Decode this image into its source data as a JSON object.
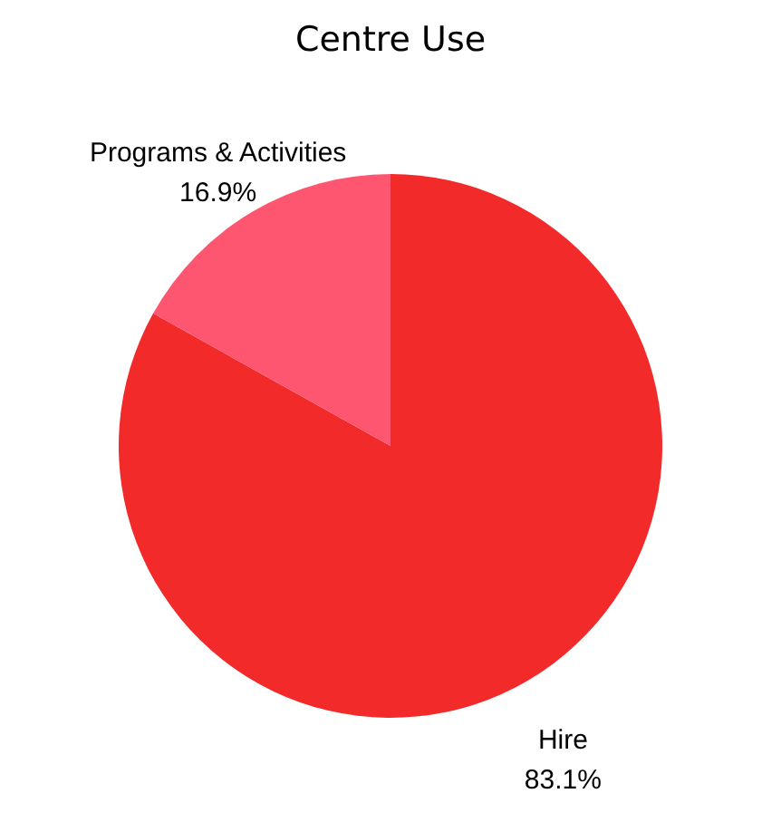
{
  "chart_data": {
    "type": "pie",
    "title": "Centre Use",
    "categories": [
      "Hire",
      "Programs & Activities"
    ],
    "values": [
      83.1,
      16.9
    ],
    "value_labels": [
      "83.1%",
      "16.9%"
    ],
    "colors": [
      "#f22a2a",
      "#fe5571"
    ]
  }
}
